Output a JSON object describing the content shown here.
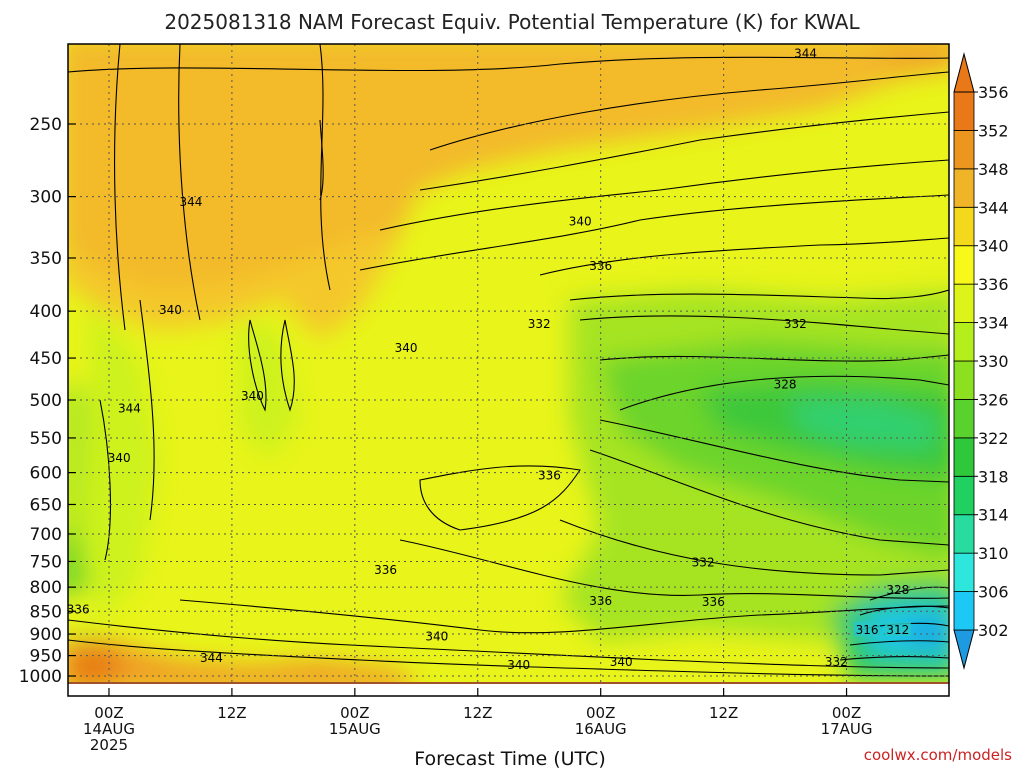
{
  "chart_data": {
    "type": "heatmap",
    "title": "2025081318 NAM Forecast Equiv. Potential Temperature (K) for KWAL",
    "xlabel": "Forecast Time (UTC)",
    "ylabel": "",
    "credit": "coolwx.com/models",
    "x_range_hours": [
      -4,
      82
    ],
    "x_ticks": [
      {
        "hour": 0,
        "lines": [
          "00Z",
          "14AUG",
          "2025"
        ]
      },
      {
        "hour": 12,
        "lines": [
          "12Z"
        ]
      },
      {
        "hour": 24,
        "lines": [
          "00Z",
          "15AUG"
        ]
      },
      {
        "hour": 36,
        "lines": [
          "12Z"
        ]
      },
      {
        "hour": 48,
        "lines": [
          "00Z",
          "16AUG"
        ]
      },
      {
        "hour": 60,
        "lines": [
          "12Z"
        ]
      },
      {
        "hour": 72,
        "lines": [
          "00Z",
          "17AUG"
        ]
      }
    ],
    "y_scale": "log-pressure",
    "y_ticks_hpa": [
      250,
      300,
      350,
      400,
      450,
      500,
      550,
      600,
      650,
      700,
      750,
      800,
      850,
      900,
      950,
      1000
    ],
    "colorbar": {
      "levels": [
        302,
        306,
        310,
        314,
        318,
        322,
        326,
        330,
        334,
        336,
        340,
        344,
        348,
        352,
        356
      ],
      "colors": [
        "#1e9be0",
        "#1ec8f5",
        "#2ee6dc",
        "#28dca0",
        "#20d060",
        "#2ec83a",
        "#5ad22e",
        "#8ce020",
        "#b4ee1c",
        "#dcf41a",
        "#f8f81a",
        "#f4d81c",
        "#f0b428",
        "#ec9620",
        "#e87818"
      ]
    },
    "contour_labels": [
      {
        "value": "344",
        "hour": 68,
        "hpa": 210
      },
      {
        "value": "344",
        "hour": 8,
        "hpa": 305
      },
      {
        "value": "340",
        "hour": 46,
        "hpa": 320
      },
      {
        "value": "336",
        "hour": 48,
        "hpa": 358
      },
      {
        "value": "340",
        "hour": 6,
        "hpa": 400
      },
      {
        "value": "332",
        "hour": 42,
        "hpa": 414
      },
      {
        "value": "332",
        "hour": 67,
        "hpa": 414
      },
      {
        "value": "340",
        "hour": 29,
        "hpa": 440
      },
      {
        "value": "328",
        "hour": 66,
        "hpa": 482
      },
      {
        "value": "340",
        "hour": 14,
        "hpa": 496
      },
      {
        "value": "344",
        "hour": 2,
        "hpa": 512
      },
      {
        "value": "340",
        "hour": 1,
        "hpa": 580
      },
      {
        "value": "336",
        "hour": 43,
        "hpa": 606
      },
      {
        "value": "336",
        "hour": 27,
        "hpa": 768
      },
      {
        "value": "332",
        "hour": 58,
        "hpa": 754
      },
      {
        "value": "336",
        "hour": 48,
        "hpa": 830
      },
      {
        "value": "336",
        "hour": 59,
        "hpa": 832
      },
      {
        "value": "336",
        "hour": -3,
        "hpa": 848
      },
      {
        "value": "328",
        "hour": 77,
        "hpa": 808
      },
      {
        "value": "340",
        "hour": 32,
        "hpa": 908
      },
      {
        "value": "316",
        "hour": 74,
        "hpa": 893
      },
      {
        "value": "312",
        "hour": 77,
        "hpa": 893
      },
      {
        "value": "344",
        "hour": 10,
        "hpa": 958
      },
      {
        "value": "340",
        "hour": 40,
        "hpa": 975
      },
      {
        "value": "340",
        "hour": 50,
        "hpa": 968
      },
      {
        "value": "332",
        "hour": 71,
        "hpa": 968
      }
    ]
  }
}
